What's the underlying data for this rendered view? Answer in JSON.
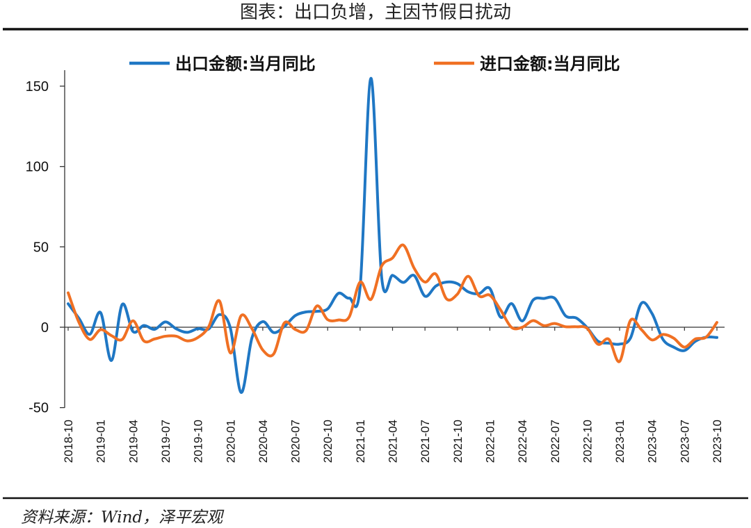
{
  "title": "图表：出口负增，主因节假日扰动",
  "source": "资料来源：Wind，泽平宏观",
  "chart_data": {
    "type": "line",
    "x": [
      "2018-10",
      "2018-11",
      "2018-12",
      "2019-01",
      "2019-02",
      "2019-03",
      "2019-04",
      "2019-05",
      "2019-06",
      "2019-07",
      "2019-08",
      "2019-09",
      "2019-10",
      "2019-11",
      "2019-12",
      "2020-01",
      "2020-02",
      "2020-03",
      "2020-04",
      "2020-05",
      "2020-06",
      "2020-07",
      "2020-08",
      "2020-09",
      "2020-10",
      "2020-11",
      "2020-12",
      "2021-01",
      "2021-02",
      "2021-03",
      "2021-04",
      "2021-05",
      "2021-06",
      "2021-07",
      "2021-08",
      "2021-09",
      "2021-10",
      "2021-11",
      "2021-12",
      "2022-01",
      "2022-02",
      "2022-03",
      "2022-04",
      "2022-05",
      "2022-06",
      "2022-07",
      "2022-08",
      "2022-09",
      "2022-10",
      "2022-11",
      "2022-12",
      "2023-01",
      "2023-02",
      "2023-03",
      "2023-04",
      "2023-05",
      "2023-06",
      "2023-07",
      "2023-08",
      "2023-09",
      "2023-10"
    ],
    "x_tick_labels": [
      "2018-10",
      "2019-01",
      "2019-04",
      "2019-07",
      "2019-10",
      "2020-01",
      "2020-04",
      "2020-07",
      "2020-10",
      "2021-01",
      "2021-04",
      "2021-07",
      "2021-10",
      "2022-01",
      "2022-04",
      "2022-07",
      "2022-10",
      "2023-01",
      "2023-04",
      "2023-07",
      "2023-10"
    ],
    "series": [
      {
        "name": "出口金额:当月同比",
        "color": "#1F77C4",
        "values": [
          14.6,
          5.5,
          -4.4,
          9.1,
          -20.7,
          14.2,
          -2.7,
          1.1,
          -1.3,
          3.3,
          -1.0,
          -3.2,
          -0.9,
          -1.1,
          7.9,
          -0.5,
          -40.6,
          -6.6,
          3.5,
          -3.3,
          0.5,
          7.2,
          9.5,
          9.9,
          11.4,
          21.1,
          18.1,
          24.7,
          154.9,
          30.6,
          32.3,
          27.9,
          32.2,
          19.3,
          25.6,
          28.1,
          27.1,
          22.0,
          20.9,
          24.1,
          6.2,
          14.7,
          3.9,
          16.9,
          17.9,
          18.0,
          7.1,
          5.7,
          -0.3,
          -8.7,
          -9.9,
          -10.5,
          -6.8,
          14.8,
          8.5,
          -7.5,
          -12.4,
          -14.5,
          -8.8,
          -6.2,
          -6.4
        ]
      },
      {
        "name": "进口金额:当月同比",
        "color": "#F07023",
        "values": [
          21.4,
          3.0,
          -7.6,
          -1.5,
          -5.2,
          -7.6,
          4.0,
          -8.5,
          -7.3,
          -5.6,
          -5.6,
          -8.5,
          -6.4,
          0.3,
          16.3,
          -16.0,
          7.2,
          -0.9,
          -14.2,
          -16.7,
          2.7,
          -1.4,
          -2.1,
          13.2,
          4.7,
          4.5,
          6.5,
          28.1,
          17.3,
          38.1,
          43.1,
          51.1,
          36.7,
          28.1,
          33.1,
          17.6,
          20.6,
          31.7,
          19.5,
          19.9,
          10.7,
          -0.1,
          0.0,
          4.1,
          1.0,
          2.3,
          0.3,
          0.3,
          -0.7,
          -10.6,
          -7.5,
          -21.3,
          4.2,
          -1.4,
          -7.9,
          -4.5,
          -6.8,
          -12.4,
          -7.3,
          -6.2,
          3.0
        ]
      }
    ],
    "ylim": [
      -50,
      160
    ],
    "yticks": [
      -50,
      0,
      50,
      100,
      150
    ],
    "grid": false,
    "legend_position": "top-center"
  }
}
